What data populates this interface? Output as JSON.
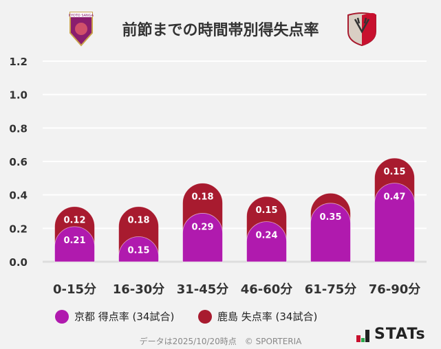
{
  "chart_data": {
    "type": "bar",
    "stacked": true,
    "title": "前節までの時間帯別得失点率",
    "categories": [
      "0-15分",
      "16-30分",
      "31-45分",
      "46-60分",
      "61-75分",
      "76-90分"
    ],
    "series": [
      {
        "name": "京都 得点率 (34試合)",
        "color": "#b01aae",
        "values": [
          0.21,
          0.15,
          0.29,
          0.24,
          0.35,
          0.47
        ],
        "labels": [
          "0.21",
          "0.15",
          "0.29",
          "0.24",
          "0.35",
          "0.47"
        ]
      },
      {
        "name": "鹿島 失点率 (34試合)",
        "color": "#a81b2f",
        "values": [
          0.12,
          0.18,
          0.18,
          0.15,
          0.06,
          0.15
        ],
        "labels": [
          "0.12",
          "0.18",
          "0.18",
          "0.15",
          "",
          "0.15"
        ]
      }
    ],
    "ylim": [
      0,
      1.2
    ],
    "yticks": [
      "0.0",
      "0.2",
      "0.4",
      "0.6",
      "0.8",
      "1.0",
      "1.2"
    ],
    "grid": true,
    "legend": "bottom"
  },
  "logos": {
    "left": "KYOTO SANGA",
    "right": "Kashima Antlers"
  },
  "footer": "データは2025/10/20時点　© SPORTERIA",
  "brand": "STATs"
}
